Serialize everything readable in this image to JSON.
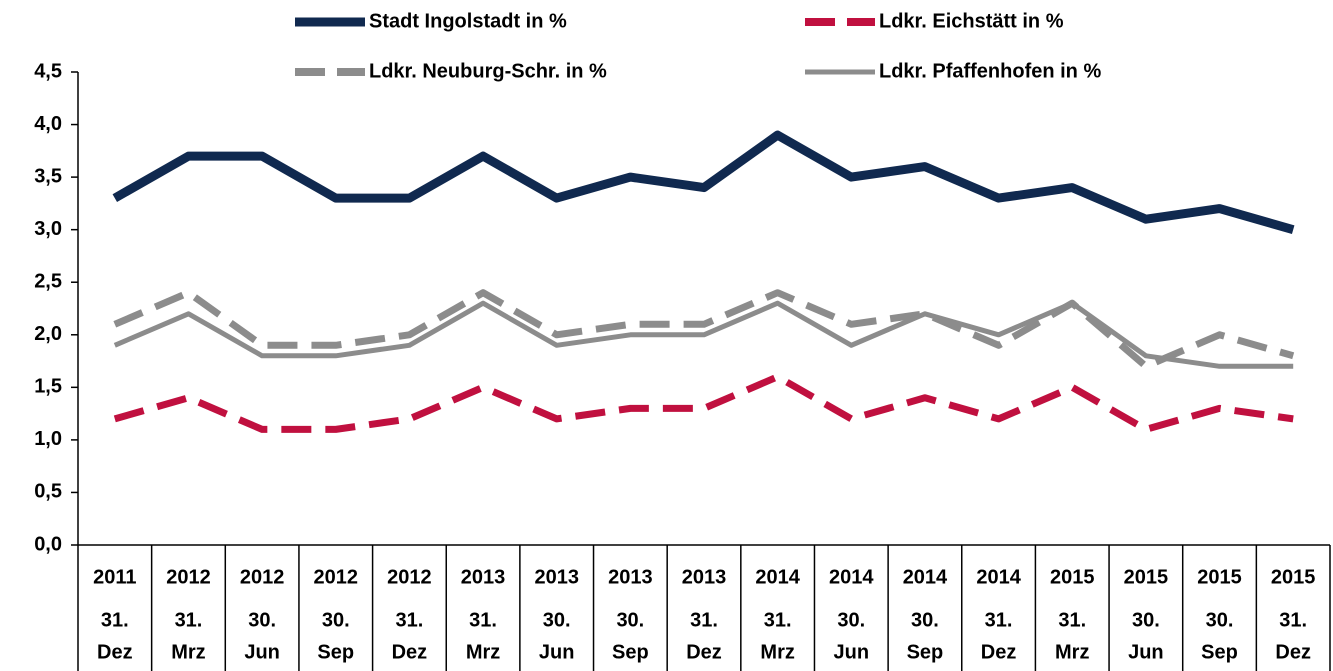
{
  "chart_data": {
    "type": "line",
    "categories": [
      {
        "year": "2011",
        "day": "31.",
        "month": "Dez"
      },
      {
        "year": "2012",
        "day": "31.",
        "month": "Mrz"
      },
      {
        "year": "2012",
        "day": "30.",
        "month": "Jun"
      },
      {
        "year": "2012",
        "day": "30.",
        "month": "Sep"
      },
      {
        "year": "2012",
        "day": "31.",
        "month": "Dez"
      },
      {
        "year": "2013",
        "day": "31.",
        "month": "Mrz"
      },
      {
        "year": "2013",
        "day": "30.",
        "month": "Jun"
      },
      {
        "year": "2013",
        "day": "30.",
        "month": "Sep"
      },
      {
        "year": "2013",
        "day": "31.",
        "month": "Dez"
      },
      {
        "year": "2014",
        "day": "31.",
        "month": "Mrz"
      },
      {
        "year": "2014",
        "day": "30.",
        "month": "Jun"
      },
      {
        "year": "2014",
        "day": "30.",
        "month": "Sep"
      },
      {
        "year": "2014",
        "day": "31.",
        "month": "Dez"
      },
      {
        "year": "2015",
        "day": "31.",
        "month": "Mrz"
      },
      {
        "year": "2015",
        "day": "30.",
        "month": "Jun"
      },
      {
        "year": "2015",
        "day": "30.",
        "month": "Sep"
      },
      {
        "year": "2015",
        "day": "31.",
        "month": "Dez"
      }
    ],
    "series": [
      {
        "name": "Stadt Ingolstadt in %",
        "color": "#10294f",
        "dashed": false,
        "values": [
          3.3,
          3.7,
          3.7,
          3.3,
          3.3,
          3.7,
          3.3,
          3.5,
          3.4,
          3.9,
          3.5,
          3.6,
          3.3,
          3.4,
          3.1,
          3.2,
          3.0
        ]
      },
      {
        "name": "Ldkr. Eichstätt in %",
        "color": "#c0103f",
        "dashed": true,
        "values": [
          1.2,
          1.4,
          1.1,
          1.1,
          1.2,
          1.5,
          1.2,
          1.3,
          1.3,
          1.6,
          1.2,
          1.4,
          1.2,
          1.5,
          1.1,
          1.3,
          1.2
        ]
      },
      {
        "name": "Ldkr. Neuburg-Schr. in %",
        "color": "#8c8c8c",
        "dashed": true,
        "values": [
          2.1,
          2.4,
          1.9,
          1.9,
          2.0,
          2.4,
          2.0,
          2.1,
          2.1,
          2.4,
          2.1,
          2.2,
          1.9,
          2.3,
          1.7,
          2.0,
          1.8
        ]
      },
      {
        "name": "Ldkr. Pfaffenhofen in %",
        "color": "#8c8c8c",
        "dashed": false,
        "values": [
          1.9,
          2.2,
          1.8,
          1.8,
          1.9,
          2.3,
          1.9,
          2.0,
          2.0,
          2.3,
          1.9,
          2.2,
          2.0,
          2.3,
          1.8,
          1.7,
          1.7
        ]
      }
    ],
    "ylim": [
      0,
      4.5
    ],
    "yticks": [
      {
        "value": 0,
        "label": "0,0"
      },
      {
        "value": 0.5,
        "label": "0,5"
      },
      {
        "value": 1,
        "label": "1,0"
      },
      {
        "value": 1.5,
        "label": "1,5"
      },
      {
        "value": 2,
        "label": "2,0"
      },
      {
        "value": 2.5,
        "label": "2,5"
      },
      {
        "value": 3,
        "label": "3,0"
      },
      {
        "value": 3.5,
        "label": "3,5"
      },
      {
        "value": 4,
        "label": "4,0"
      },
      {
        "value": 4.5,
        "label": "4,5"
      }
    ],
    "grid": false
  }
}
